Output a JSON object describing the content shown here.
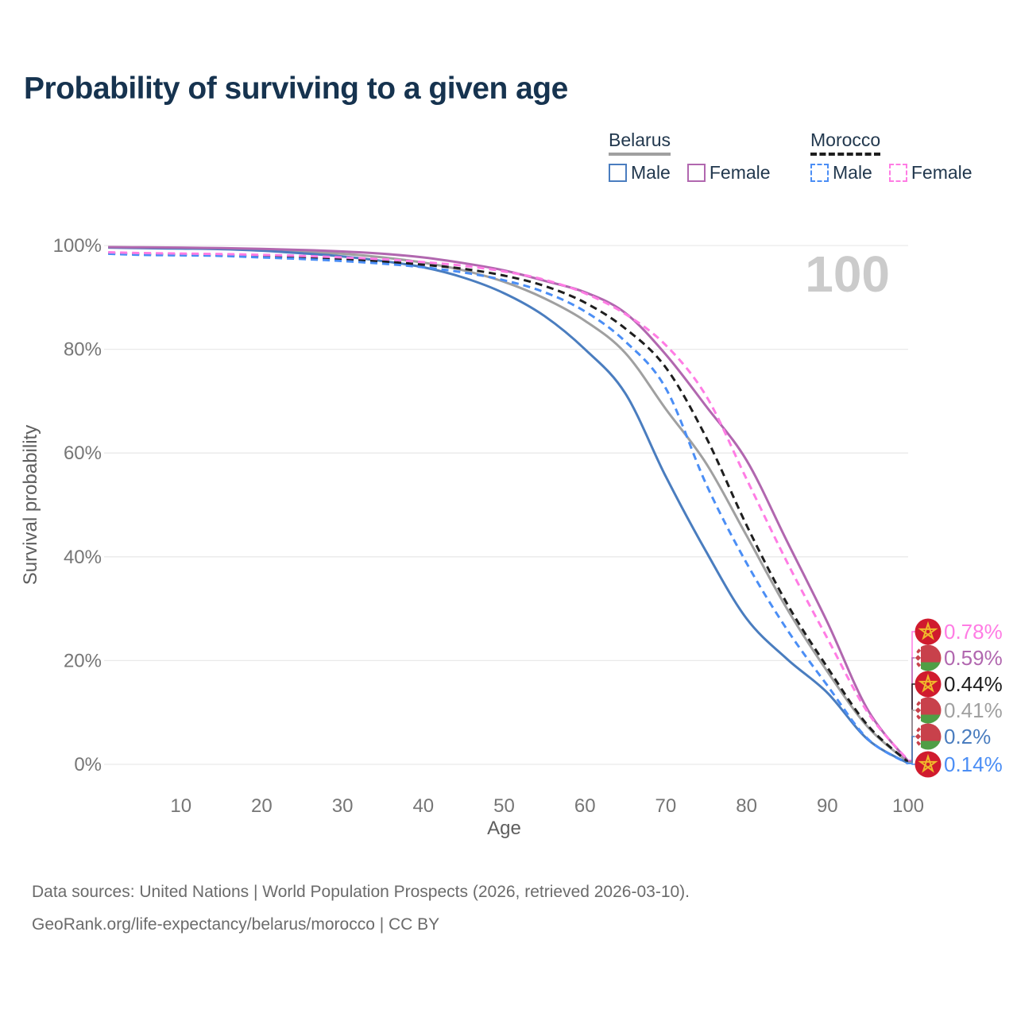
{
  "title": "Probability of surviving to a given age",
  "watermark": "100",
  "legend": {
    "groups": [
      {
        "label": "Belarus",
        "line_style": "solid",
        "line_color": "#a0a0a0",
        "items": [
          {
            "label": "Male",
            "color": "#4a7dbf",
            "dash": "solid"
          },
          {
            "label": "Female",
            "color": "#b167af",
            "dash": "solid"
          }
        ]
      },
      {
        "label": "Morocco",
        "line_style": "dashed",
        "line_color": "#1e1e1e",
        "items": [
          {
            "label": "Male",
            "color": "#4b8ef5",
            "dash": "dashed"
          },
          {
            "label": "Female",
            "color": "#ff7ce4",
            "dash": "dashed"
          }
        ]
      }
    ]
  },
  "chart_data": {
    "type": "line",
    "title": "Probability of surviving to a given age",
    "xlabel": "Age",
    "ylabel": "Survival probability",
    "xlim": [
      0,
      100
    ],
    "ylim": [
      0,
      100
    ],
    "grid": "horizontal",
    "x_ticks": [
      10,
      20,
      30,
      40,
      50,
      60,
      70,
      80,
      90,
      100
    ],
    "y_ticks": [
      "0%",
      "20%",
      "40%",
      "60%",
      "80%",
      "100%"
    ],
    "ages": [
      0,
      5,
      10,
      15,
      20,
      25,
      30,
      35,
      40,
      45,
      50,
      55,
      60,
      65,
      70,
      75,
      80,
      85,
      90,
      95,
      100
    ],
    "series": [
      {
        "id": "morocco-female",
        "name": "Morocco Female",
        "country": "Morocco",
        "sex": "Female",
        "color": "#ff7ce4",
        "dash": "dashed",
        "flag": "morocco",
        "end_label": "0.78%",
        "values": [
          98.7,
          98.55,
          98.45,
          98.35,
          98.2,
          98.0,
          97.7,
          97.35,
          96.8,
          96.1,
          95.0,
          93.4,
          90.8,
          86.8,
          80.8,
          71.0,
          55.0,
          39.0,
          24.3,
          10.0,
          0.78
        ]
      },
      {
        "id": "belarus-female",
        "name": "Belarus Female",
        "country": "Belarus",
        "sex": "Female",
        "color": "#b167af",
        "dash": "solid",
        "flag": "belarus",
        "end_label": "0.59%",
        "values": [
          99.7,
          99.65,
          99.6,
          99.5,
          99.35,
          99.15,
          98.85,
          98.4,
          97.7,
          96.6,
          95.2,
          93.2,
          91.0,
          87.0,
          79.0,
          69.0,
          58.6,
          43.0,
          27.4,
          10.5,
          0.59
        ]
      },
      {
        "id": "morocco-both",
        "name": "Morocco Both sexes",
        "country": "Morocco",
        "sex": "Both",
        "color": "#1e1e1e",
        "dash": "dashed",
        "flag": "morocco",
        "end_label": "0.44%",
        "values": [
          98.5,
          98.35,
          98.25,
          98.1,
          97.9,
          97.65,
          97.3,
          96.9,
          96.3,
          95.5,
          94.2,
          92.2,
          89.0,
          84.0,
          76.5,
          63.0,
          46.1,
          31.0,
          18.7,
          7.5,
          0.44
        ]
      },
      {
        "id": "belarus-both",
        "name": "Belarus Both sexes",
        "country": "Belarus",
        "sex": "Both",
        "color": "#a0a0a0",
        "dash": "solid",
        "flag": "belarus",
        "end_label": "0.41%",
        "values": [
          99.65,
          99.6,
          99.5,
          99.4,
          99.2,
          98.8,
          98.4,
          97.7,
          96.7,
          95.2,
          93.0,
          89.8,
          85.5,
          79.3,
          68.5,
          58.0,
          44.1,
          30.0,
          17.9,
          7.2,
          0.41
        ]
      },
      {
        "id": "belarus-male",
        "name": "Belarus Male",
        "country": "Belarus",
        "sex": "Male",
        "color": "#4a7dbf",
        "dash": "solid",
        "flag": "belarus",
        "end_label": "0.2%",
        "values": [
          99.6,
          99.5,
          99.4,
          99.3,
          99.0,
          98.5,
          97.9,
          97.0,
          95.8,
          93.8,
          90.8,
          86.4,
          80.0,
          71.5,
          55.5,
          41.0,
          28.1,
          20.3,
          13.8,
          4.8,
          0.2
        ]
      },
      {
        "id": "morocco-male",
        "name": "Morocco Male",
        "country": "Morocco",
        "sex": "Male",
        "color": "#4b8ef5",
        "dash": "dashed",
        "flag": "morocco",
        "end_label": "0.14%",
        "values": [
          98.4,
          98.2,
          98.1,
          98.0,
          97.7,
          97.4,
          97.0,
          96.5,
          95.8,
          94.8,
          93.3,
          91.0,
          87.3,
          81.5,
          72.5,
          54.0,
          38.8,
          26.0,
          15.2,
          4.9,
          0.14
        ]
      }
    ]
  },
  "footer": {
    "line1": "Data sources: United Nations | World Population Prospects (2026, retrieved 2026-03-10).",
    "line2": "GeoRank.org/life-expectancy/belarus/morocco | CC BY"
  }
}
